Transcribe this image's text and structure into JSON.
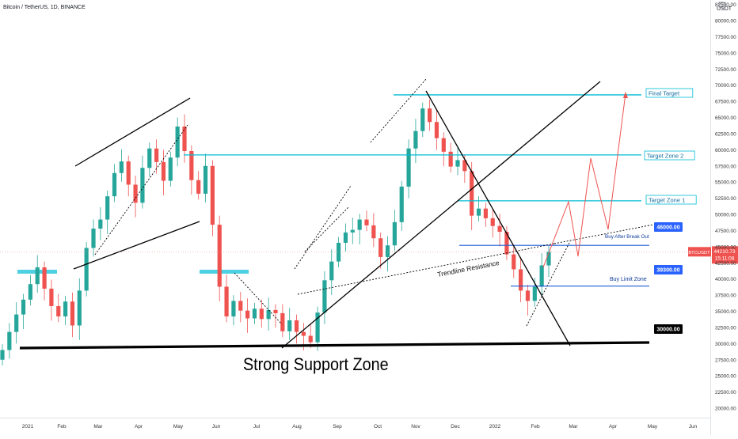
{
  "header": {
    "symbol": "Bitcoin / TetherUS, 1D, BINANCE",
    "currency": "USDT",
    "icon": "expand-icon"
  },
  "colors": {
    "up": "#26a69a",
    "down": "#ef5350",
    "zone": "#4dd0e1",
    "badge_blue": "#2962ff",
    "price_badge": "#ef5350",
    "projection": "#ef5350",
    "target_line": "#00bcd4",
    "support": "#000000"
  },
  "chart_data": {
    "type": "candlestick",
    "ylim": [
      19000,
      87000
    ],
    "x_ticks": [
      "2021",
      "Feb",
      "Mar",
      "Apr",
      "May",
      "Jun",
      "Jul",
      "Aug",
      "Sep",
      "Oct",
      "Nov",
      "Dec",
      "2022",
      "Feb",
      "Mar",
      "Apr",
      "May",
      "Jun"
    ],
    "y_ticks": [
      "20000.00",
      "22500.00",
      "25000.00",
      "27500.00",
      "30000.00",
      "32500.00",
      "35000.00",
      "37500.00",
      "40000.00",
      "42500.00",
      "45000.00",
      "47500.00",
      "50000.00",
      "52500.00",
      "55000.00",
      "57500.00",
      "60000.00",
      "62500.00",
      "65000.00",
      "67500.00",
      "70000.00",
      "72500.00",
      "75000.00",
      "77500.00",
      "80000.00",
      "82500.00",
      "85000.00"
    ],
    "series_close": [
      29000,
      31800,
      34500,
      36800,
      39200,
      41800,
      38500,
      35800,
      34200,
      36500,
      32800,
      38200,
      44800,
      47800,
      49200,
      52800,
      56400,
      58200,
      54600,
      51800,
      57200,
      60200,
      58100,
      55200,
      58800,
      63600,
      59800,
      55300,
      53200,
      57500,
      48400,
      38800,
      34200,
      36600,
      35100,
      33900,
      35400,
      33800,
      35200,
      34700,
      31900,
      33600,
      31800,
      31200,
      30200,
      34800,
      39800,
      42700,
      45600,
      47200,
      47600,
      49200,
      48300,
      46300,
      43400,
      45200,
      48800,
      54300,
      60200,
      62900,
      66400,
      64300,
      61800,
      59700,
      57400,
      58400,
      56700,
      49800,
      50900,
      49400,
      48200,
      47300,
      43800,
      41500,
      38200,
      36600,
      38800,
      42100,
      44200
    ],
    "last_price": "44210.73",
    "countdown": "15:11:08",
    "price_tag": "BTCUSDT",
    "levels": [
      {
        "label": "Final Target",
        "value": 68500
      },
      {
        "label": "Target Zone 2",
        "value": 59200
      },
      {
        "label": "Target Zone 1",
        "value": 52100
      },
      {
        "label": "Buy After Break Out",
        "value": 45200
      },
      {
        "label": "Buy Limit Zone",
        "value": 38900
      }
    ],
    "badges": [
      {
        "label": "46000.00",
        "value": 46000
      },
      {
        "label": "39300.00",
        "value": 39300
      },
      {
        "label": "30000.00",
        "value": 30000
      }
    ],
    "annotations": {
      "trendline": "Trendline Resistance",
      "support": "Strong Support Zone"
    }
  }
}
